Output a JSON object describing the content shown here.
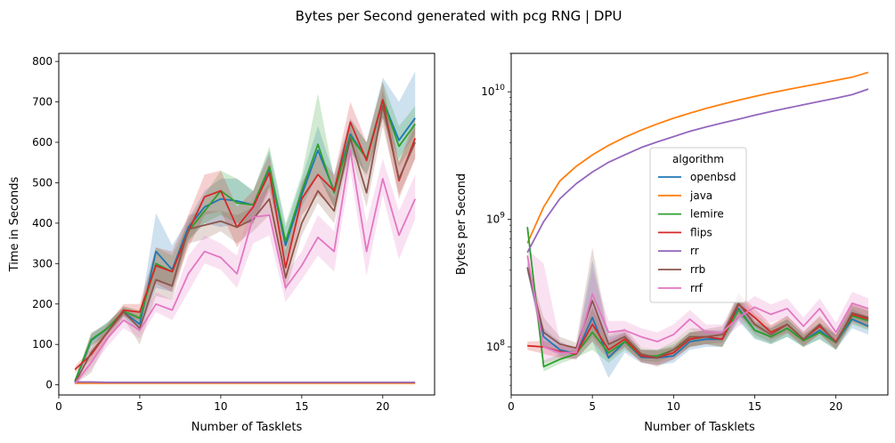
{
  "suptitle": "Bytes per Second generated with pcg RNG | DPU",
  "colors": {
    "openbsd": "#1f77b4",
    "java": "#ff7f0e",
    "lemire": "#2ca02c",
    "flips": "#d62728",
    "rr": "#9467bd",
    "rrb": "#8c564b",
    "rrf": "#e377c2"
  },
  "chart_data": [
    {
      "type": "line",
      "xlabel": "Number of Tasklets",
      "ylabel": "Time in Seconds",
      "xlim": [
        0,
        23.2
      ],
      "ylim": [
        -25,
        820
      ],
      "yscale": "linear",
      "xticks": [
        "0",
        "5",
        "10",
        "15",
        "20"
      ],
      "yticks": [
        "0",
        "100",
        "200",
        "300",
        "400",
        "500",
        "600",
        "700",
        "800"
      ],
      "x": [
        1,
        2,
        3,
        4,
        5,
        6,
        7,
        8,
        9,
        10,
        11,
        12,
        13,
        14,
        15,
        16,
        17,
        18,
        19,
        20,
        21,
        22
      ],
      "series": [
        {
          "name": "openbsd",
          "values": [
            8,
            110,
            140,
            180,
            150,
            330,
            285,
            390,
            440,
            460,
            455,
            445,
            535,
            345,
            470,
            580,
            480,
            620,
            560,
            705,
            605,
            660
          ],
          "lower": [
            5,
            95,
            125,
            170,
            130,
            240,
            230,
            360,
            400,
            390,
            400,
            400,
            490,
            300,
            430,
            520,
            440,
            580,
            520,
            660,
            560,
            620
          ],
          "upper": [
            12,
            125,
            155,
            190,
            170,
            425,
            345,
            410,
            480,
            510,
            510,
            480,
            580,
            390,
            510,
            640,
            520,
            660,
            600,
            760,
            700,
            775
          ]
        },
        {
          "name": "java",
          "values": [
            4,
            4,
            4,
            4,
            4,
            4,
            4,
            4,
            4,
            4,
            4,
            4,
            4,
            4,
            4,
            4,
            4,
            4,
            4,
            4,
            4,
            4
          ]
        },
        {
          "name": "lemire",
          "values": [
            10,
            112,
            140,
            182,
            165,
            300,
            280,
            380,
            430,
            480,
            450,
            445,
            540,
            355,
            480,
            595,
            475,
            615,
            560,
            705,
            590,
            645
          ],
          "lower": [
            6,
            98,
            125,
            170,
            145,
            260,
            240,
            355,
            400,
            420,
            400,
            400,
            490,
            310,
            440,
            520,
            440,
            575,
            520,
            660,
            540,
            600
          ],
          "upper": [
            14,
            126,
            155,
            194,
            185,
            340,
            320,
            400,
            470,
            530,
            510,
            480,
            590,
            400,
            520,
            720,
            510,
            655,
            600,
            750,
            640,
            690
          ]
        },
        {
          "name": "flips",
          "values": [
            38,
            75,
            130,
            185,
            180,
            295,
            280,
            380,
            465,
            480,
            390,
            440,
            525,
            290,
            460,
            520,
            480,
            650,
            555,
            705,
            505,
            610
          ],
          "lower": [
            30,
            60,
            110,
            170,
            160,
            250,
            230,
            340,
            420,
            430,
            340,
            400,
            480,
            250,
            420,
            470,
            440,
            600,
            510,
            660,
            460,
            560
          ],
          "upper": [
            46,
            90,
            150,
            200,
            200,
            340,
            330,
            420,
            520,
            530,
            440,
            480,
            570,
            330,
            500,
            570,
            520,
            700,
            600,
            750,
            550,
            660
          ]
        },
        {
          "name": "rr",
          "values": [
            7,
            7,
            6,
            6,
            6,
            6,
            6,
            6,
            6,
            6,
            6,
            6,
            6,
            6,
            6,
            6,
            6,
            6,
            6,
            6,
            6,
            6
          ],
          "lower": [
            3,
            3,
            3,
            3,
            3,
            3,
            3,
            3,
            3,
            3,
            3,
            3,
            3,
            3,
            3,
            3,
            3,
            3,
            3,
            3,
            3,
            3
          ],
          "upper": [
            10,
            10,
            9,
            9,
            9,
            9,
            9,
            9,
            9,
            9,
            9,
            9,
            9,
            9,
            9,
            9,
            9,
            9,
            9,
            9,
            9,
            9
          ]
        },
        {
          "name": "rrb",
          "values": [
            5,
            80,
            130,
            180,
            140,
            260,
            245,
            385,
            395,
            405,
            390,
            410,
            460,
            265,
            400,
            480,
            430,
            610,
            475,
            690,
            510,
            600
          ],
          "lower": [
            2,
            30,
            110,
            165,
            100,
            220,
            210,
            350,
            360,
            380,
            350,
            380,
            420,
            230,
            370,
            450,
            400,
            580,
            440,
            640,
            470,
            560
          ],
          "upper": [
            8,
            130,
            150,
            195,
            180,
            300,
            280,
            420,
            430,
            430,
            420,
            440,
            500,
            300,
            430,
            520,
            460,
            640,
            510,
            730,
            550,
            640
          ]
        },
        {
          "name": "rrf",
          "values": [
            3,
            55,
            115,
            160,
            135,
            200,
            185,
            275,
            330,
            315,
            275,
            415,
            420,
            240,
            295,
            365,
            330,
            580,
            330,
            510,
            370,
            460
          ],
          "lower": [
            1,
            40,
            95,
            140,
            115,
            180,
            160,
            230,
            300,
            285,
            240,
            350,
            370,
            205,
            260,
            320,
            280,
            530,
            270,
            470,
            310,
            410
          ],
          "upper": [
            6,
            75,
            135,
            180,
            155,
            230,
            210,
            320,
            370,
            350,
            320,
            470,
            480,
            275,
            330,
            420,
            380,
            630,
            400,
            560,
            430,
            520
          ]
        }
      ]
    },
    {
      "type": "line",
      "xlabel": "Number of Tasklets",
      "ylabel": "Bytes per Second",
      "xlim": [
        0,
        23.2
      ],
      "ylim": [
        42000000,
        20000000000
      ],
      "yscale": "log",
      "xticks": [
        "0",
        "5",
        "10",
        "15",
        "20"
      ],
      "yticks": [
        "10^8",
        "10^9",
        "10^10"
      ],
      "legend": {
        "title": "algorithm",
        "position": "center",
        "entries": [
          "openbsd",
          "java",
          "lemire",
          "flips",
          "rr",
          "rrb",
          "rrf"
        ]
      },
      "x": [
        1,
        2,
        3,
        4,
        5,
        6,
        7,
        8,
        9,
        10,
        11,
        12,
        13,
        14,
        15,
        16,
        17,
        18,
        19,
        20,
        21,
        22
      ],
      "series": [
        {
          "name": "openbsd",
          "values": [
            420000000,
            120000000,
            95000000,
            88000000,
            170000000,
            82000000,
            110000000,
            83000000,
            82000000,
            85000000,
            110000000,
            115000000,
            115000000,
            200000000,
            135000000,
            120000000,
            140000000,
            112000000,
            135000000,
            108000000,
            165000000,
            145000000
          ],
          "lower": [
            380000000,
            100000000,
            85000000,
            80000000,
            110000000,
            57000000,
            90000000,
            75000000,
            72000000,
            75000000,
            95000000,
            100000000,
            100000000,
            160000000,
            115000000,
            105000000,
            120000000,
            100000000,
            115000000,
            95000000,
            140000000,
            125000000
          ],
          "upper": [
            460000000,
            140000000,
            110000000,
            96000000,
            480000000,
            120000000,
            130000000,
            95000000,
            95000000,
            100000000,
            130000000,
            135000000,
            135000000,
            250000000,
            160000000,
            140000000,
            165000000,
            125000000,
            155000000,
            125000000,
            200000000,
            170000000
          ]
        },
        {
          "name": "java",
          "values": [
            650000000,
            1250000000,
            2000000000,
            2600000000,
            3200000000,
            3800000000,
            4400000000,
            5000000000,
            5600000000,
            6200000000,
            6800000000,
            7400000000,
            8000000000,
            8600000000,
            9200000000,
            9800000000,
            10400000000,
            11000000000,
            11600000000,
            12300000000,
            13000000000,
            14200000000
          ]
        },
        {
          "name": "lemire",
          "values": [
            870000000,
            70000000,
            80000000,
            88000000,
            130000000,
            90000000,
            110000000,
            85000000,
            85000000,
            95000000,
            115000000,
            120000000,
            115000000,
            195000000,
            135000000,
            120000000,
            140000000,
            112000000,
            130000000,
            108000000,
            175000000,
            160000000
          ],
          "lower": [
            800000000,
            64000000,
            74000000,
            82000000,
            95000000,
            75000000,
            95000000,
            78000000,
            76000000,
            85000000,
            100000000,
            105000000,
            100000000,
            165000000,
            118000000,
            105000000,
            120000000,
            100000000,
            115000000,
            95000000,
            150000000,
            135000000
          ],
          "upper": [
            950000000,
            78000000,
            88000000,
            96000000,
            200000000,
            105000000,
            125000000,
            95000000,
            95000000,
            105000000,
            130000000,
            135000000,
            130000000,
            235000000,
            155000000,
            140000000,
            165000000,
            125000000,
            150000000,
            125000000,
            210000000,
            190000000
          ]
        },
        {
          "name": "flips",
          "values": [
            102000000,
            100000000,
            92000000,
            88000000,
            150000000,
            95000000,
            115000000,
            85000000,
            82000000,
            90000000,
            115000000,
            120000000,
            115000000,
            215000000,
            170000000,
            130000000,
            150000000,
            115000000,
            145000000,
            110000000,
            180000000,
            165000000
          ],
          "lower": [
            95000000,
            88000000,
            82000000,
            80000000,
            110000000,
            80000000,
            100000000,
            76000000,
            72000000,
            80000000,
            100000000,
            105000000,
            100000000,
            175000000,
            145000000,
            115000000,
            130000000,
            102000000,
            125000000,
            97000000,
            155000000,
            140000000
          ],
          "upper": [
            110000000,
            112000000,
            102000000,
            97000000,
            210000000,
            112000000,
            130000000,
            95000000,
            93000000,
            100000000,
            130000000,
            135000000,
            130000000,
            265000000,
            200000000,
            150000000,
            175000000,
            130000000,
            170000000,
            125000000,
            215000000,
            195000000
          ]
        },
        {
          "name": "rr",
          "values": [
            550000000,
            960000000,
            1450000000,
            1900000000,
            2350000000,
            2800000000,
            3200000000,
            3650000000,
            4050000000,
            4450000000,
            4900000000,
            5300000000,
            5700000000,
            6100000000,
            6550000000,
            7000000000,
            7450000000,
            7900000000,
            8400000000,
            8900000000,
            9500000000,
            10500000000
          ]
        },
        {
          "name": "rrb",
          "values": [
            420000000,
            130000000,
            105000000,
            98000000,
            230000000,
            105000000,
            120000000,
            88000000,
            82000000,
            95000000,
            120000000,
            120000000,
            125000000,
            220000000,
            150000000,
            125000000,
            150000000,
            115000000,
            150000000,
            108000000,
            185000000,
            170000000
          ],
          "lower": [
            380000000,
            100000000,
            90000000,
            88000000,
            120000000,
            85000000,
            100000000,
            76000000,
            70000000,
            80000000,
            100000000,
            105000000,
            108000000,
            180000000,
            125000000,
            108000000,
            128000000,
            100000000,
            128000000,
            95000000,
            160000000,
            145000000
          ],
          "upper": [
            460000000,
            170000000,
            120000000,
            108000000,
            600000000,
            125000000,
            140000000,
            100000000,
            95000000,
            110000000,
            140000000,
            138000000,
            145000000,
            265000000,
            180000000,
            145000000,
            175000000,
            132000000,
            175000000,
            125000000,
            220000000,
            200000000
          ]
        },
        {
          "name": "rrf",
          "values": [
            520000000,
            100000000,
            90000000,
            90000000,
            260000000,
            130000000,
            135000000,
            120000000,
            110000000,
            125000000,
            165000000,
            130000000,
            130000000,
            170000000,
            205000000,
            180000000,
            200000000,
            145000000,
            200000000,
            130000000,
            220000000,
            200000000
          ],
          "lower": [
            470000000,
            75000000,
            80000000,
            82000000,
            150000000,
            110000000,
            115000000,
            100000000,
            95000000,
            108000000,
            140000000,
            112000000,
            112000000,
            145000000,
            170000000,
            155000000,
            170000000,
            125000000,
            170000000,
            112000000,
            185000000,
            170000000
          ],
          "upper": [
            580000000,
            450000000,
            110000000,
            100000000,
            400000000,
            160000000,
            160000000,
            140000000,
            130000000,
            150000000,
            195000000,
            150000000,
            150000000,
            200000000,
            250000000,
            215000000,
            240000000,
            170000000,
            240000000,
            155000000,
            270000000,
            240000000
          ]
        }
      ]
    }
  ]
}
